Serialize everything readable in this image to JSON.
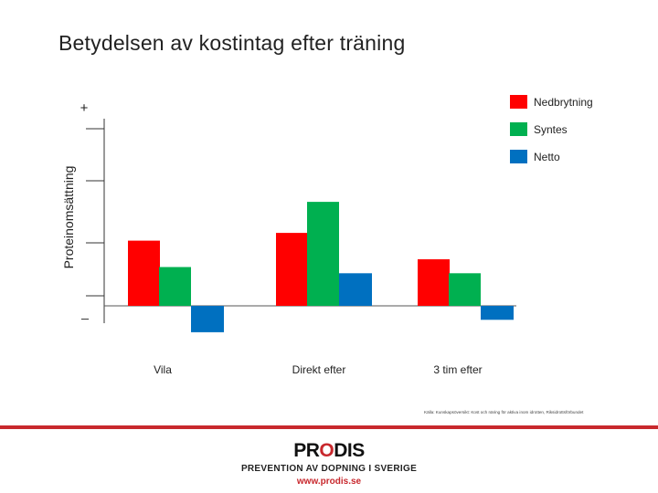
{
  "title": "Betydelsen av kostintag efter träning",
  "chart_data": {
    "type": "bar",
    "ylabel": "Proteinomsättning",
    "ytick_top": "+",
    "ytick_bottom": "_",
    "categories": [
      "Vila",
      "Direkt efter",
      "3 tim efter"
    ],
    "series": [
      {
        "name": "Nedbrytning",
        "color": "#ff0000",
        "values": [
          2.1,
          2.35,
          1.5
        ]
      },
      {
        "name": "Syntes",
        "color": "#00b050",
        "values": [
          1.25,
          3.35,
          1.05
        ]
      },
      {
        "name": "Netto",
        "color": "#0070c0",
        "values": [
          -0.85,
          1.05,
          -0.45
        ]
      }
    ],
    "ylim": [
      -1.2,
      5.9
    ],
    "legend": "top-right",
    "grid": false,
    "source_note": "Källa: Kunskapsöversikt: Kost och näring för aktiva inom idrotten, Riksidrottsförbundet"
  },
  "footer": {
    "logo_pre": "PR",
    "logo_o": "O",
    "logo_post": "DIS",
    "tagline": "PREVENTION AV DOPNING I SVERIGE",
    "url": "www.prodis.se"
  }
}
